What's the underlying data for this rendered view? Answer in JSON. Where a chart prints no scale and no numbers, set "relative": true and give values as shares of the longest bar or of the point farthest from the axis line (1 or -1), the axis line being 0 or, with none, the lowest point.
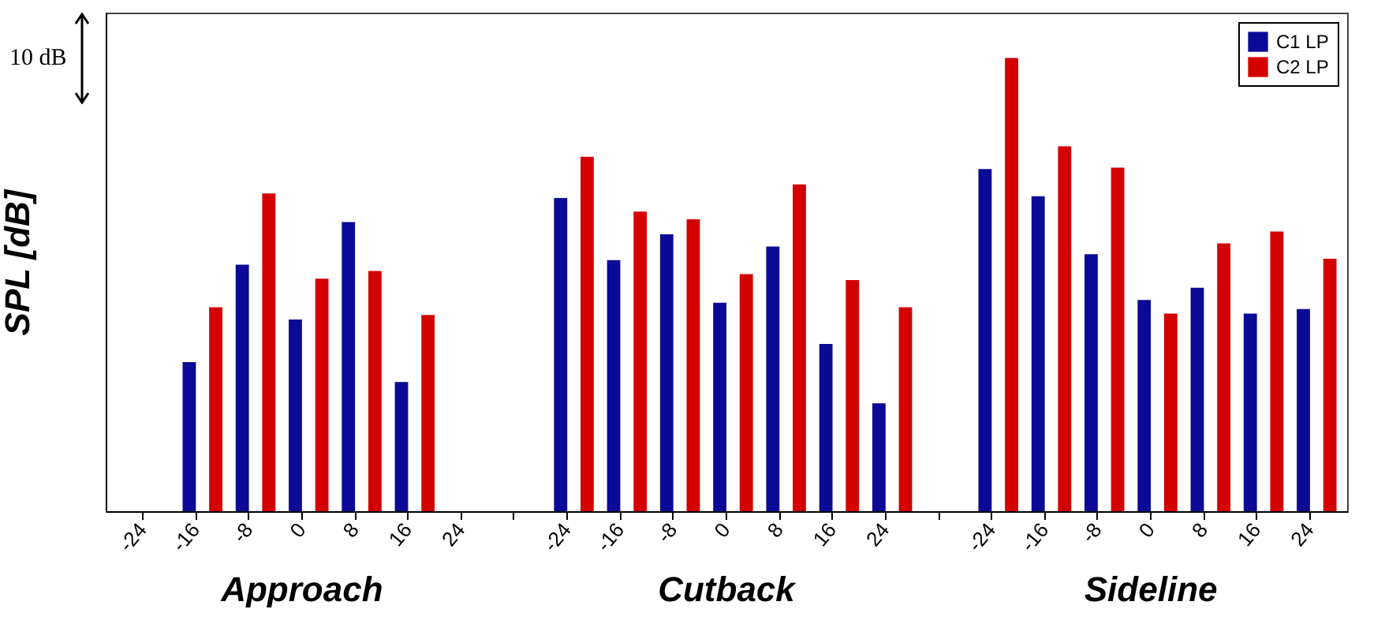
{
  "chart_data": {
    "type": "bar",
    "ylabel": "SPL [dB]",
    "relative": true,
    "tick_labels": "x",
    "legend": "top right",
    "annotations": [
      "10 dB",
      "Approach",
      "Cutback",
      "Sideline"
    ],
    "categories": [
      "-24",
      "-16",
      "-8",
      "0",
      "8",
      "16",
      "24",
      null,
      "-24",
      "-16",
      "-8",
      "0",
      "8",
      "16",
      "24",
      null,
      "-24",
      "-16",
      "-8",
      "0",
      "8",
      "16",
      "24"
    ],
    "series": [
      {
        "name": "C1 LP",
        "color": "#0a0a96",
        "values": [
          null,
          0.329,
          0.544,
          0.423,
          0.638,
          0.285,
          null,
          null,
          0.691,
          0.554,
          0.611,
          0.46,
          0.584,
          0.369,
          0.238,
          null,
          0.755,
          0.695,
          0.567,
          0.466,
          0.493,
          0.436,
          0.446
        ]
      },
      {
        "name": "C2 LP",
        "color": "#d40000",
        "values": [
          null,
          0.45,
          0.701,
          0.513,
          0.53,
          0.433,
          null,
          null,
          0.782,
          0.661,
          0.644,
          0.523,
          0.721,
          0.51,
          0.45,
          null,
          1,
          0.805,
          0.758,
          0.436,
          0.591,
          0.617,
          0.557
        ]
      }
    ]
  }
}
